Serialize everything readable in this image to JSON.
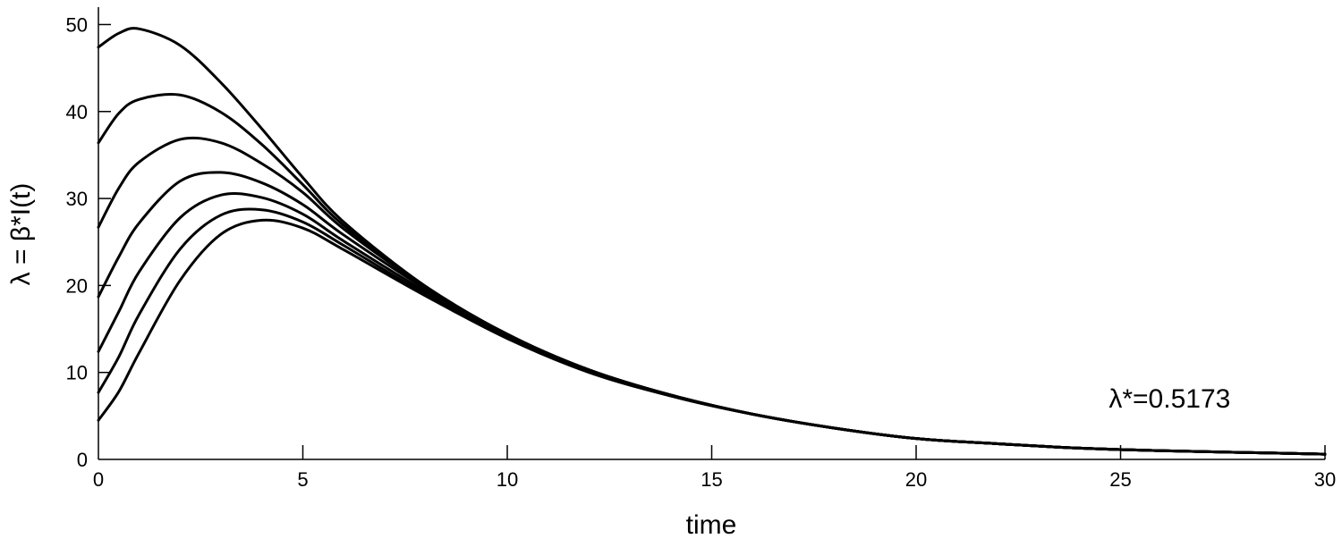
{
  "chart_data": {
    "type": "line",
    "title": "",
    "xlabel": "time",
    "ylabel": "λ =  β*I(t)",
    "xlim": [
      0,
      30
    ],
    "ylim": [
      0,
      52
    ],
    "xticks": [
      0,
      5,
      10,
      15,
      20,
      25,
      30
    ],
    "yticks": [
      0,
      10,
      20,
      30,
      40,
      50
    ],
    "grid": false,
    "legend": "none",
    "line_color": "#000000",
    "annotation": {
      "text": "λ*=0.5173",
      "x": 26.2,
      "y": 7.0
    },
    "series": [
      {
        "x": [
          0,
          0.5,
          1,
          2,
          3,
          4,
          5,
          6,
          8,
          10,
          12,
          14,
          16,
          18,
          20,
          22,
          24,
          26,
          28,
          30
        ],
        "values": [
          47.4,
          49.0,
          49.5,
          47.6,
          43.3,
          38.0,
          32.4,
          27.3,
          19.9,
          14.4,
          10.3,
          7.4,
          5.2,
          3.6,
          2.4,
          1.8,
          1.3,
          1.0,
          0.8,
          0.6
        ]
      },
      {
        "x": [
          0,
          0.5,
          1,
          2,
          3,
          4,
          5,
          6,
          8,
          10,
          12,
          14,
          16,
          18,
          20,
          22,
          24,
          26,
          28,
          30
        ],
        "values": [
          36.4,
          39.8,
          41.4,
          41.9,
          39.9,
          36.2,
          31.6,
          26.9,
          19.9,
          14.4,
          10.3,
          7.4,
          5.2,
          3.6,
          2.4,
          1.8,
          1.3,
          1.0,
          0.8,
          0.6
        ]
      },
      {
        "x": [
          0,
          0.5,
          1,
          2,
          3,
          4,
          5,
          6,
          8,
          10,
          12,
          14,
          16,
          18,
          20,
          22,
          24,
          26,
          28,
          30
        ],
        "values": [
          26.7,
          31.2,
          34.2,
          36.8,
          36.4,
          34.0,
          30.7,
          26.5,
          19.8,
          14.3,
          10.3,
          7.4,
          5.2,
          3.6,
          2.4,
          1.8,
          1.3,
          1.0,
          0.8,
          0.6
        ]
      },
      {
        "x": [
          0,
          0.5,
          1,
          2,
          3,
          4,
          5,
          6,
          8,
          10,
          12,
          14,
          16,
          18,
          20,
          22,
          24,
          26,
          28,
          30
        ],
        "values": [
          18.7,
          23.3,
          27.2,
          32.0,
          33.0,
          31.8,
          29.3,
          25.8,
          19.6,
          14.2,
          10.2,
          7.4,
          5.2,
          3.6,
          2.4,
          1.8,
          1.3,
          1.0,
          0.8,
          0.6
        ]
      },
      {
        "x": [
          0,
          0.5,
          1,
          2,
          3,
          4,
          5,
          6,
          8,
          10,
          12,
          14,
          16,
          18,
          20,
          22,
          24,
          26,
          28,
          30
        ],
        "values": [
          12.4,
          17.0,
          21.6,
          27.8,
          30.4,
          30.1,
          28.2,
          25.1,
          19.3,
          14.1,
          10.1,
          7.3,
          5.2,
          3.6,
          2.4,
          1.8,
          1.3,
          1.0,
          0.8,
          0.6
        ]
      },
      {
        "x": [
          0,
          0.5,
          1,
          2,
          3,
          4,
          5,
          6,
          8,
          10,
          12,
          14,
          16,
          18,
          20,
          22,
          24,
          26,
          28,
          30
        ],
        "values": [
          7.7,
          11.8,
          16.7,
          24.2,
          28.1,
          28.7,
          27.3,
          24.6,
          19.0,
          14.0,
          10.1,
          7.3,
          5.2,
          3.6,
          2.4,
          1.8,
          1.3,
          1.0,
          0.8,
          0.6
        ]
      },
      {
        "x": [
          0,
          0.5,
          1,
          2,
          3,
          4,
          5,
          6,
          8,
          10,
          12,
          14,
          16,
          18,
          20,
          22,
          24,
          26,
          28,
          30
        ],
        "values": [
          4.5,
          7.8,
          12.3,
          20.6,
          25.9,
          27.5,
          26.6,
          24.1,
          18.8,
          13.9,
          10.0,
          7.3,
          5.2,
          3.6,
          2.4,
          1.8,
          1.3,
          1.0,
          0.8,
          0.6
        ]
      }
    ]
  }
}
